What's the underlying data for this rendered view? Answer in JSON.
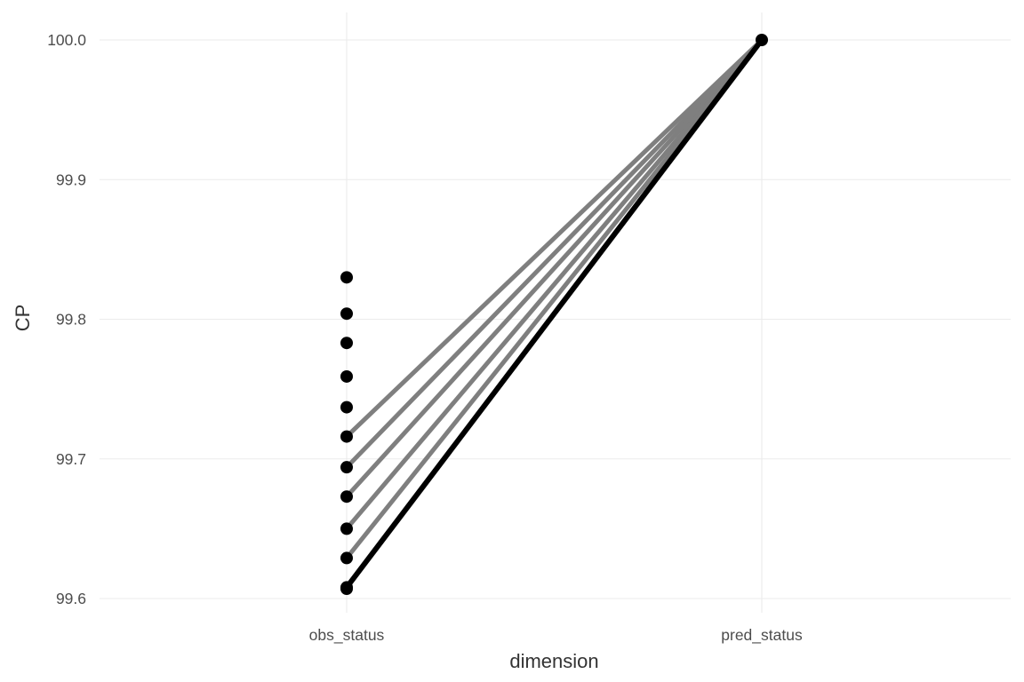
{
  "chart_data": {
    "type": "line",
    "xlabel": "dimension",
    "ylabel": "CP",
    "categories": [
      "obs_status",
      "pred_status"
    ],
    "ylim": [
      99.6,
      100.0
    ],
    "y_ticks": [
      99.6,
      99.7,
      99.8,
      99.9,
      100.0
    ],
    "y_tick_labels": [
      "99.6",
      "99.7",
      "99.8",
      "99.9",
      "100.0"
    ],
    "grid": true,
    "legend": "none",
    "points": {
      "obs_status": [
        99.83,
        99.804,
        99.783,
        99.759,
        99.737,
        99.716,
        99.694,
        99.673,
        99.65,
        99.629,
        99.608,
        99.607
      ],
      "pred_status": [
        100.0
      ]
    },
    "segments": [
      {
        "from": 99.716,
        "to": 100.0,
        "color": "#7f7f7f"
      },
      {
        "from": 99.694,
        "to": 100.0,
        "color": "#7f7f7f"
      },
      {
        "from": 99.673,
        "to": 100.0,
        "color": "#7f7f7f"
      },
      {
        "from": 99.65,
        "to": 100.0,
        "color": "#7f7f7f"
      },
      {
        "from": 99.629,
        "to": 100.0,
        "color": "#7f7f7f"
      },
      {
        "from": 99.608,
        "to": 100.0,
        "color": "#000000"
      }
    ],
    "colors": {
      "point": "#000000",
      "line_grey": "#7f7f7f",
      "line_black": "#000000",
      "grid": "#ebebeb"
    }
  }
}
